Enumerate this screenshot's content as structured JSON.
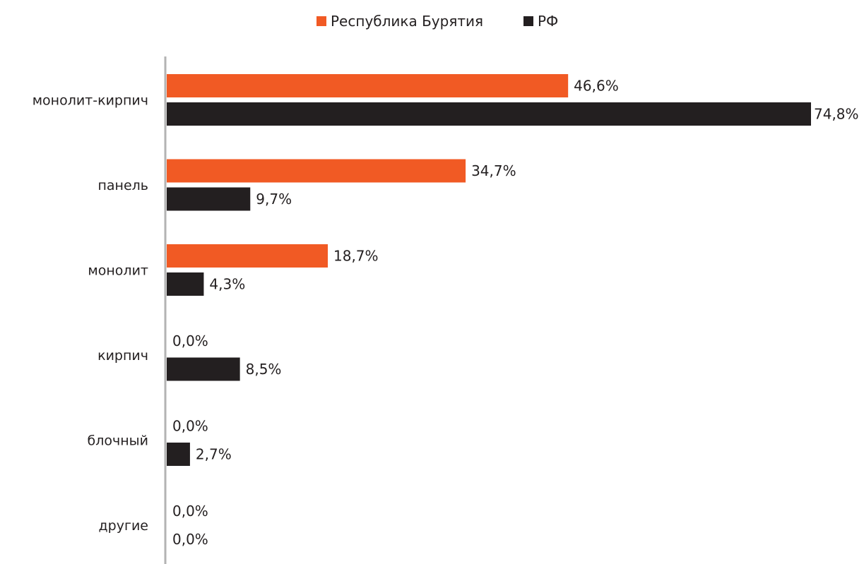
{
  "chart_data": {
    "type": "bar",
    "orientation": "horizontal",
    "title": "",
    "xlabel": "",
    "ylabel": "",
    "xlim": [
      0,
      74.8
    ],
    "grid": false,
    "legend_position": "top-center",
    "categories": [
      "монолит-кирпич",
      "панель",
      "монолит",
      "кирпич",
      "блочный",
      "другие"
    ],
    "series": [
      {
        "name": "Республика Бурятия",
        "color": "#f15a24",
        "values": [
          46.6,
          34.7,
          18.7,
          0.0,
          0.0,
          0.0
        ],
        "labels": [
          "46,6%",
          "34,7%",
          "18,7%",
          "0,0%",
          "0,0%",
          "0,0%"
        ]
      },
      {
        "name": "РФ",
        "color": "#231f20",
        "values": [
          74.8,
          9.7,
          4.3,
          8.5,
          2.7,
          0.0
        ],
        "labels": [
          "74,8%",
          "9,7%",
          "4,3%",
          "8,5%",
          "2,7%",
          "0,0%"
        ]
      }
    ]
  }
}
